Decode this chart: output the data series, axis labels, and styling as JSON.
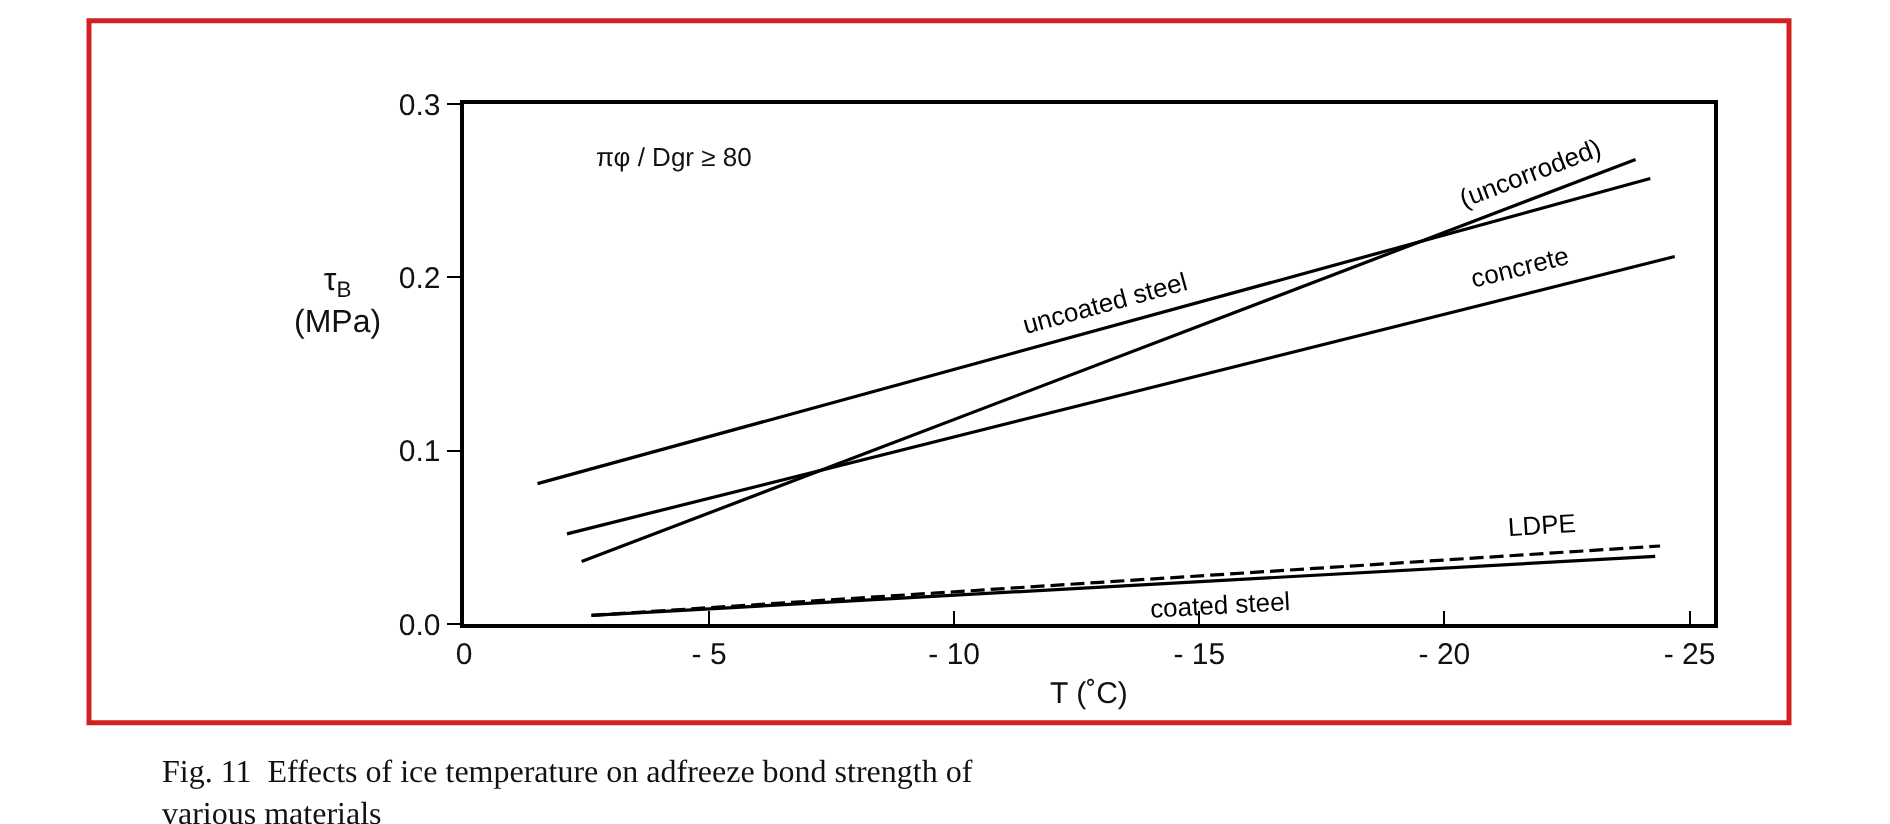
{
  "chart_data": {
    "type": "line",
    "xlabel": "T (˚C)",
    "ylabel": "τ$_{B}$\n(MPa)",
    "xlim": [
      0,
      -25.5
    ],
    "ylim": [
      0,
      0.3
    ],
    "xticks": [
      0,
      {
        "value": -5,
        "label": "- 5"
      },
      {
        "value": -10,
        "label": "- 10"
      },
      {
        "value": -15,
        "label": "- 15"
      },
      {
        "value": -20,
        "label": "- 20"
      },
      {
        "value": -25,
        "label": "- 25"
      }
    ],
    "yticks": [
      {
        "value": 0,
        "label": "0.0"
      },
      0.1,
      0.2,
      0.3
    ],
    "legend": false,
    "marker": "none",
    "series": [
      {
        "name": "uncoated steel",
        "color": "#000000",
        "x": [
          -1.5,
          -24.2
        ],
        "values": [
          0.081,
          0.257
        ]
      },
      {
        "name": "concrete",
        "color": "#000000",
        "x": [
          -2.1,
          -24.7
        ],
        "values": [
          0.052,
          0.212
        ]
      },
      {
        "name": "(uncorroded)",
        "color": "#000000",
        "x": [
          -2.4,
          -23.9
        ],
        "values": [
          0.036,
          0.268
        ]
      },
      {
        "name": "LDPE",
        "color": "#000000",
        "x": [
          -2.6,
          -24.4
        ],
        "values": [
          0.005,
          0.045
        ],
        "line_style": "dashed"
      },
      {
        "name": "coated steel",
        "color": "#000000",
        "x": [
          -2.6,
          -24.3
        ],
        "values": [
          0.005,
          0.039
        ]
      }
    ],
    "annotations": [
      "πφ / Dgr ≥ 80",
      "Fig. 11  Effects of ice temperature on adfreeze bond strength of\nvarious materials"
    ]
  }
}
